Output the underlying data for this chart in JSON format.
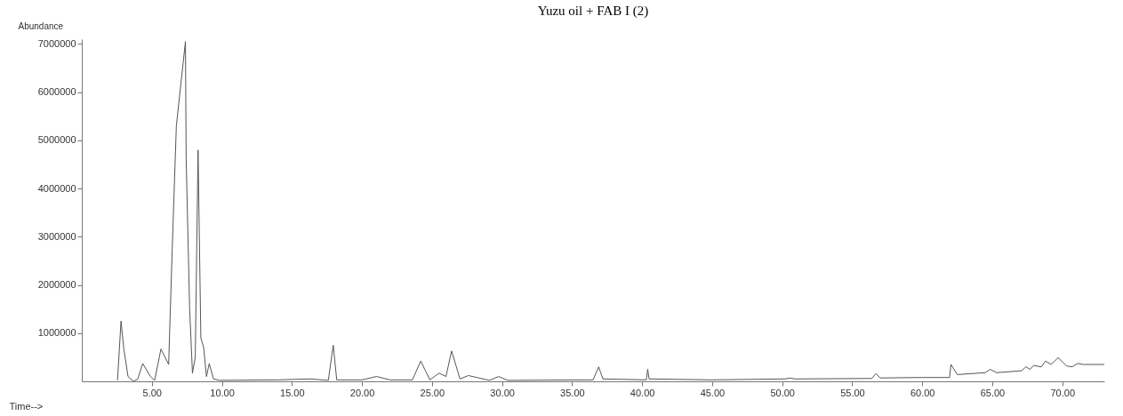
{
  "chart_data": {
    "type": "line",
    "title": "Yuzu oil + FAB I  (2)",
    "xlabel": "Time-->",
    "ylabel": "Abundance",
    "xlim": [
      0,
      73
    ],
    "ylim": [
      0,
      7100000
    ],
    "xticks": [
      {
        "value": 5,
        "label": "5.00"
      },
      {
        "value": 10,
        "label": "10.00"
      },
      {
        "value": 15,
        "label": "15.00"
      },
      {
        "value": 20,
        "label": "20.00"
      },
      {
        "value": 25,
        "label": "25.00"
      },
      {
        "value": 30,
        "label": "30.00"
      },
      {
        "value": 35,
        "label": "35.00"
      },
      {
        "value": 40,
        "label": "40.00"
      },
      {
        "value": 45,
        "label": "45.00"
      },
      {
        "value": 50,
        "label": "50.00"
      },
      {
        "value": 55,
        "label": "55.00"
      },
      {
        "value": 60,
        "label": "60.00"
      },
      {
        "value": 65,
        "label": "65.00"
      },
      {
        "value": 70,
        "label": "70.00"
      }
    ],
    "yticks": [
      1000000,
      2000000,
      3000000,
      4000000,
      5000000,
      6000000,
      7000000
    ],
    "grid": false,
    "marker": "none",
    "line_style": "solid",
    "x": [
      2.55,
      2.8,
      3.0,
      3.3,
      3.7,
      4.0,
      4.35,
      4.9,
      5.2,
      5.65,
      6.2,
      6.45,
      6.75,
      7.4,
      7.45,
      7.7,
      7.9,
      8.1,
      8.3,
      8.5,
      8.7,
      8.9,
      9.1,
      9.4,
      9.8,
      14.0,
      16.3,
      17.6,
      17.95,
      18.2,
      20.0,
      21.05,
      22.0,
      23.6,
      24.2,
      24.85,
      25.5,
      26.0,
      26.4,
      27.0,
      27.6,
      28.2,
      29.1,
      29.75,
      30.4,
      36.5,
      36.9,
      37.2,
      40.3,
      40.4,
      40.5,
      45.0,
      50.2,
      50.55,
      50.9,
      56.4,
      56.7,
      57.0,
      60.0,
      61.95,
      62.05,
      62.5,
      64.5,
      64.85,
      65.3,
      67.1,
      67.4,
      67.7,
      67.95,
      68.5,
      68.8,
      69.2,
      69.7,
      70.3,
      70.7,
      71.1,
      71.5,
      73.0
    ],
    "series": [
      {
        "color": "#555555",
        "values": [
          20000,
          1250000,
          670000,
          100000,
          0,
          50000,
          370000,
          100000,
          20000,
          670000,
          350000,
          2700000,
          5300000,
          7050000,
          4600000,
          1500000,
          170000,
          500000,
          4800000,
          900000,
          700000,
          100000,
          370000,
          50000,
          20000,
          30000,
          50000,
          20000,
          750000,
          30000,
          30000,
          100000,
          30000,
          30000,
          420000,
          30000,
          170000,
          100000,
          630000,
          50000,
          120000,
          80000,
          20000,
          100000,
          20000,
          30000,
          300000,
          50000,
          30000,
          250000,
          50000,
          30000,
          50000,
          70000,
          50000,
          60000,
          160000,
          70000,
          80000,
          80000,
          350000,
          140000,
          180000,
          250000,
          180000,
          220000,
          300000,
          250000,
          330000,
          300000,
          420000,
          350000,
          490000,
          320000,
          300000,
          370000,
          350000,
          350000
        ]
      }
    ]
  }
}
